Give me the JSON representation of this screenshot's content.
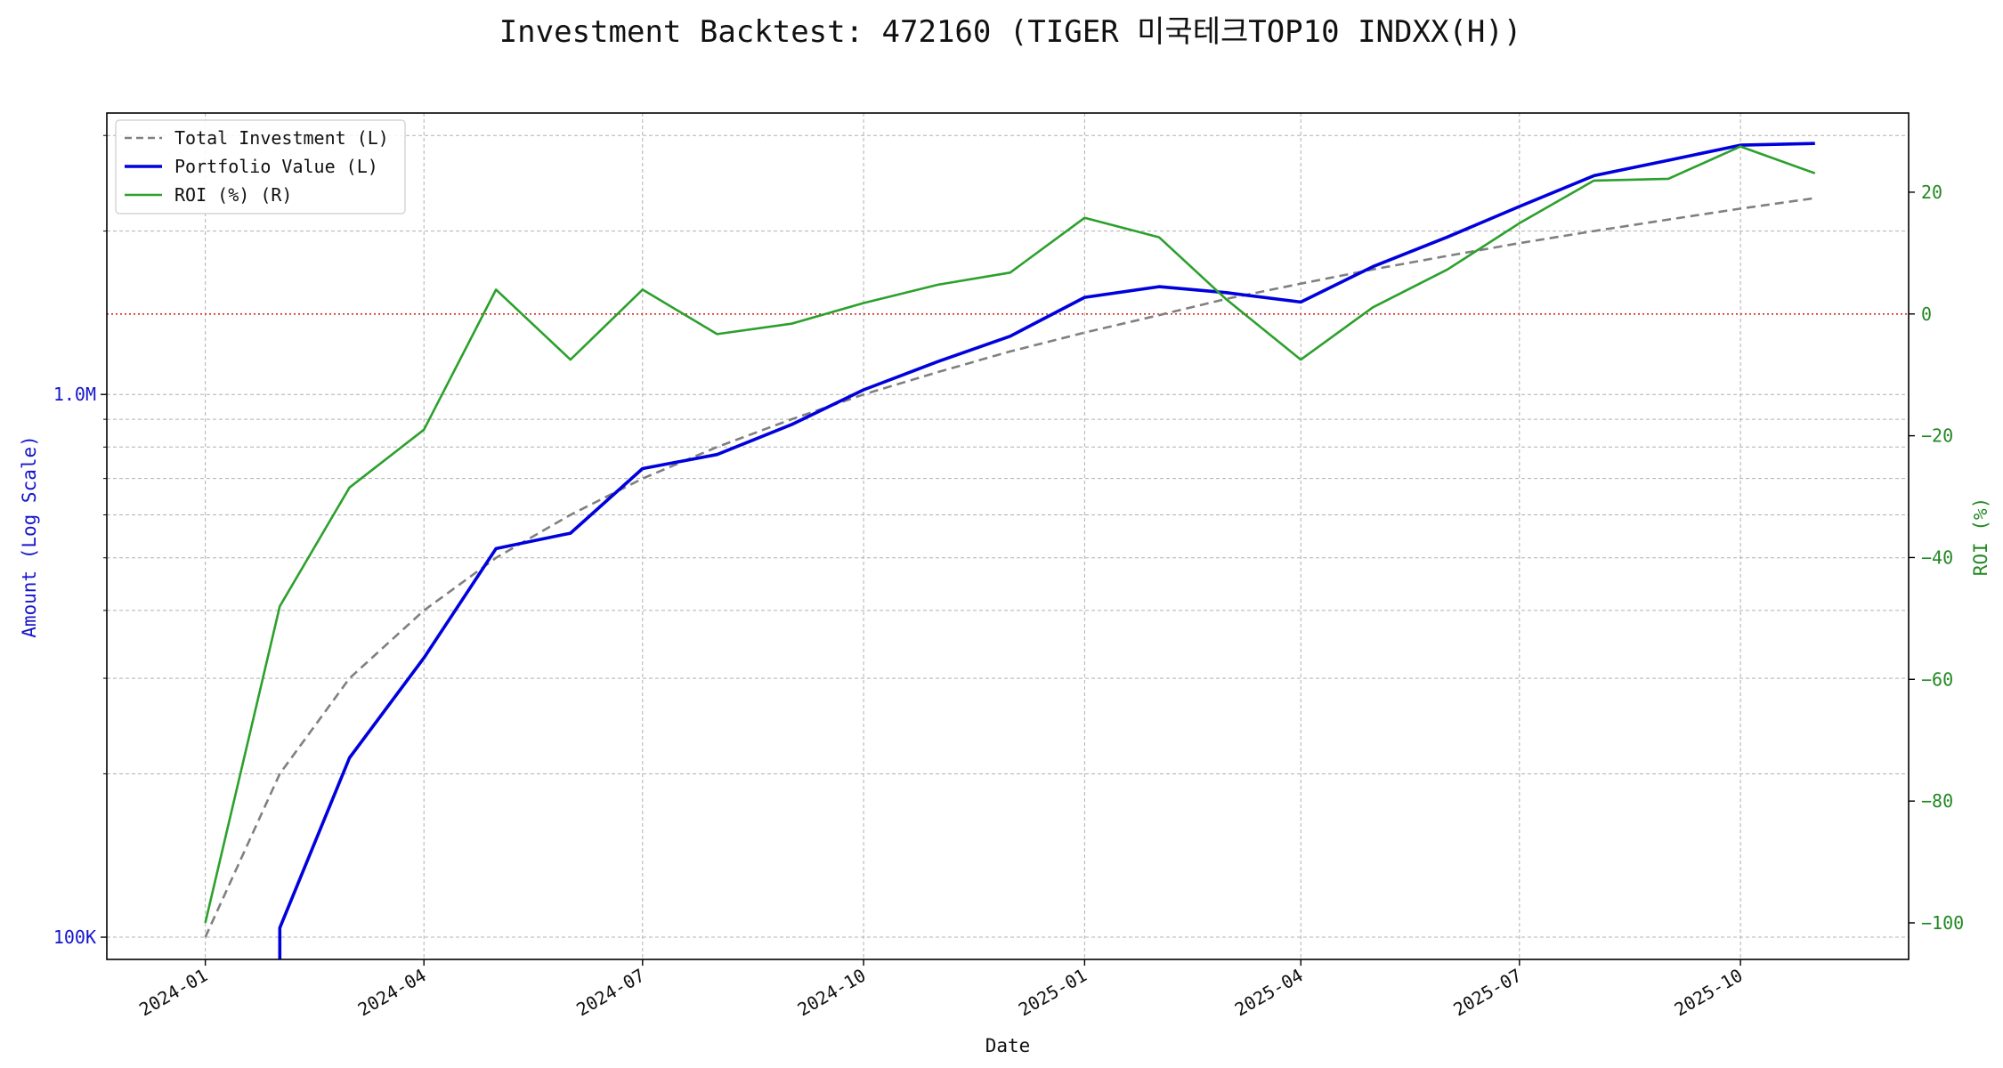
{
  "chart_data": {
    "type": "line",
    "title": "Investment Backtest: 472160 (TIGER 미국테크TOP10 INDXX(H))",
    "xlabel": "Date",
    "ylabel_left": "Amount (Log Scale)",
    "ylabel_right": "ROI (%)",
    "left_axis_scale": "log",
    "xlim": [
      "2023-11-21",
      "2025-12-10"
    ],
    "ylim_left": [
      91000,
      3300000
    ],
    "ylim_right": [
      -106,
      33
    ],
    "x_ticks": [
      "2024-01",
      "2024-04",
      "2024-07",
      "2024-10",
      "2025-01",
      "2025-04",
      "2025-07",
      "2025-10"
    ],
    "y_left_ticks": [
      {
        "value": 100000,
        "label": "100K"
      },
      {
        "value": 1000000,
        "label": "1.0M"
      }
    ],
    "y_right_ticks": [
      {
        "value": 20,
        "label": "20"
      },
      {
        "value": 0,
        "label": "0"
      },
      {
        "value": -20,
        "label": "−20"
      },
      {
        "value": -40,
        "label": "−40"
      },
      {
        "value": -60,
        "label": "−60"
      },
      {
        "value": -80,
        "label": "−80"
      },
      {
        "value": -100,
        "label": "−100"
      }
    ],
    "reference_line": {
      "axis": "right",
      "value": 0,
      "color": "#d62728",
      "style": "dotted"
    },
    "grid": true,
    "legend_position": "top-left",
    "series": [
      {
        "name": "Total Investment (L)",
        "axis": "left",
        "color": "#808080",
        "style": "dashed",
        "points": [
          [
            "2024-01-01",
            100000
          ],
          [
            "2024-02-01",
            200000
          ],
          [
            "2024-03-01",
            300000
          ],
          [
            "2024-04-01",
            400000
          ],
          [
            "2024-05-01",
            500000
          ],
          [
            "2024-06-01",
            600000
          ],
          [
            "2024-07-01",
            700000
          ],
          [
            "2024-08-01",
            800000
          ],
          [
            "2024-09-01",
            900000
          ],
          [
            "2024-10-01",
            1000000
          ],
          [
            "2024-11-01",
            1100000
          ],
          [
            "2024-12-01",
            1200000
          ],
          [
            "2025-01-01",
            1300000
          ],
          [
            "2025-02-01",
            1400000
          ],
          [
            "2025-03-01",
            1500000
          ],
          [
            "2025-04-01",
            1600000
          ],
          [
            "2025-05-01",
            1700000
          ],
          [
            "2025-06-01",
            1800000
          ],
          [
            "2025-07-01",
            1900000
          ],
          [
            "2025-08-01",
            2000000
          ],
          [
            "2025-09-01",
            2100000
          ],
          [
            "2025-10-01",
            2200000
          ],
          [
            "2025-11-01",
            2300000
          ]
        ]
      },
      {
        "name": "Portfolio Value (L)",
        "axis": "left",
        "color": "#0000dd",
        "style": "solid",
        "points": [
          [
            "2024-02-01",
            60000
          ],
          [
            "2024-02-01",
            104000
          ],
          [
            "2024-03-01",
            214000
          ],
          [
            "2024-04-01",
            327000
          ],
          [
            "2024-05-01",
            520000
          ],
          [
            "2024-06-01",
            555000
          ],
          [
            "2024-07-01",
            730000
          ],
          [
            "2024-08-01",
            775000
          ],
          [
            "2024-09-01",
            880000
          ],
          [
            "2024-10-01",
            1020000
          ],
          [
            "2024-11-01",
            1150000
          ],
          [
            "2024-12-01",
            1280000
          ],
          [
            "2025-01-01",
            1510000
          ],
          [
            "2025-02-01",
            1580000
          ],
          [
            "2025-03-01",
            1540000
          ],
          [
            "2025-04-01",
            1480000
          ],
          [
            "2025-05-01",
            1720000
          ],
          [
            "2025-06-01",
            1950000
          ],
          [
            "2025-07-01",
            2220000
          ],
          [
            "2025-08-01",
            2530000
          ],
          [
            "2025-09-01",
            2700000
          ],
          [
            "2025-10-01",
            2880000
          ],
          [
            "2025-11-01",
            2900000
          ]
        ]
      },
      {
        "name": "ROI (%) (R)",
        "axis": "right",
        "color": "#2ca02c",
        "style": "solid",
        "points": [
          [
            "2024-01-01",
            -100
          ],
          [
            "2024-02-01",
            -48
          ],
          [
            "2024-03-01",
            -28.5
          ],
          [
            "2024-04-01",
            -19
          ],
          [
            "2024-05-01",
            4
          ],
          [
            "2024-06-01",
            -7.5
          ],
          [
            "2024-07-01",
            4
          ],
          [
            "2024-08-01",
            -3.3
          ],
          [
            "2024-09-01",
            -1.6
          ],
          [
            "2024-10-01",
            1.8
          ],
          [
            "2024-11-01",
            4.8
          ],
          [
            "2024-12-01",
            6.8
          ],
          [
            "2025-01-01",
            15.8
          ],
          [
            "2025-02-01",
            12.6
          ],
          [
            "2025-03-01",
            2.4
          ],
          [
            "2025-04-01",
            -7.5
          ],
          [
            "2025-05-01",
            1.1
          ],
          [
            "2025-06-01",
            7.3
          ],
          [
            "2025-07-01",
            14.9
          ],
          [
            "2025-08-01",
            21.9
          ],
          [
            "2025-09-01",
            22.2
          ],
          [
            "2025-10-01",
            27.5
          ],
          [
            "2025-11-01",
            23.1
          ]
        ]
      }
    ]
  }
}
